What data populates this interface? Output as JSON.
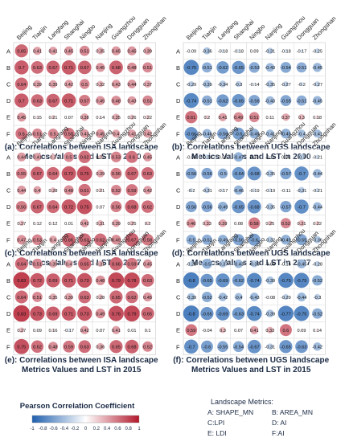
{
  "column_labels": [
    "Beijing",
    "Tianjin",
    "Langfang",
    "Shanghai",
    "Ningbo",
    "Nanjing",
    "Guangzhou",
    "Dongguan",
    "Zhongshan"
  ],
  "row_labels": [
    "A",
    "B",
    "C",
    "D",
    "E",
    "F"
  ],
  "colorbar": {
    "title": "Pearson Correlation Coefficient",
    "ticks": [
      "-1",
      "-0.8",
      "-0.6",
      "-0.4",
      "-0.2",
      "0",
      "0.2",
      "0.4",
      "0.6",
      "0.8",
      "1"
    ],
    "colors": {
      "negative": "#1f5fae",
      "zero": "#ffffff",
      "positive": "#b2182b"
    }
  },
  "landscape_metrics": {
    "title": "Landscape Metrics:",
    "items": [
      "A: SHAPE_MN",
      "B: AREA_MN",
      "C:LPI",
      "D: AI",
      "E: LDI",
      "F:AI"
    ]
  },
  "chart_data": [
    {
      "type": "heatmap",
      "caption_line1": "(a): Correlations between ISA landscape",
      "caption_line2": "Metrics Values and LST in 2000",
      "values": [
        [
          0.65,
          0.41,
          0.41,
          0.45,
          0.51,
          0.35,
          0.45,
          0.45,
          0.39
        ],
        [
          0.7,
          0.63,
          0.67,
          0.71,
          0.67,
          0.45,
          0.68,
          0.48,
          0.51
        ],
        [
          0.64,
          0.39,
          0.39,
          0.42,
          0.5,
          0.32,
          0.43,
          0.44,
          0.37
        ],
        [
          0.7,
          0.63,
          0.67,
          0.71,
          0.57,
          0.45,
          0.48,
          0.43,
          0.51
        ],
        [
          0.45,
          0.15,
          0.21,
          0.07,
          0.38,
          0.14,
          0.35,
          0.26,
          0.22
        ],
        [
          0.6,
          0.51,
          0.5,
          0.58,
          0.43,
          0.45,
          0.4,
          0.41,
          0.42
        ]
      ]
    },
    {
      "type": "heatmap",
      "caption_line1": "(b): Correlations between UGS landscape",
      "caption_line2": "Metrics Values and LST in 2000",
      "values": [
        [
          -0.09,
          -0.36,
          -0.18,
          -0.18,
          0.09,
          -0.31,
          -0.18,
          -0.17,
          -0.25
        ],
        [
          -0.75,
          -0.51,
          -0.62,
          -0.65,
          -0.53,
          -0.43,
          -0.54,
          -0.51,
          -0.45
        ],
        [
          -0.29,
          -0.39,
          -0.34,
          -0.3,
          -0.14,
          -0.35,
          -0.27,
          -0.2,
          -0.27
        ],
        [
          -0.74,
          -0.51,
          -0.62,
          -0.65,
          -0.56,
          -0.43,
          -0.55,
          -0.51,
          -0.45
        ],
        [
          0.61,
          0.2,
          0.41,
          0.49,
          0.51,
          0.11,
          0.37,
          0.3,
          0.18
        ],
        [
          -0.66,
          -0.46,
          -0.56,
          -0.6,
          -0.49,
          -0.41,
          -0.49,
          -0.4,
          -0.41
        ]
      ]
    },
    {
      "type": "heatmap",
      "caption_line1": "(c): Correlations between ISA landscape",
      "caption_line2": "Metrics Values and LST in 2007",
      "values": [
        [
          0.44,
          0.41,
          0.3,
          0.5,
          0.62,
          0.22,
          0.53,
          0.6,
          0.45
        ],
        [
          0.55,
          0.67,
          0.64,
          0.72,
          0.75,
          0.39,
          0.56,
          0.67,
          0.63
        ],
        [
          0.44,
          0.4,
          0.28,
          0.48,
          0.61,
          0.21,
          0.52,
          0.59,
          0.42
        ],
        [
          0.56,
          0.67,
          0.64,
          0.72,
          0.75,
          0.07,
          0.56,
          0.68,
          0.62
        ],
        [
          0.27,
          0.12,
          0.12,
          0.01,
          0.42,
          0.31,
          0.39,
          0.25,
          0.2
        ],
        [
          0.47,
          0.53,
          0.4,
          0.66,
          0.63,
          0.62,
          0.49,
          0.67,
          0.58
        ]
      ]
    },
    {
      "type": "heatmap",
      "caption_line1": "(d): Correlations between UGS landscape",
      "caption_line2": "Metrics Values and LST in 2007",
      "values": [
        [
          -0.06,
          -0.24,
          0.02,
          -0.47,
          0.03,
          -0.11,
          0.06,
          -0.3,
          -0.21
        ],
        [
          -0.56,
          -0.56,
          -0.5,
          -0.64,
          -0.68,
          -0.35,
          -0.57,
          -0.7,
          -0.44
        ],
        [
          -0.2,
          -0.31,
          -0.17,
          -0.46,
          -0.19,
          -0.19,
          -0.11,
          -0.31,
          -0.21
        ],
        [
          -0.56,
          -0.56,
          -0.49,
          -0.65,
          -0.68,
          -0.35,
          -0.57,
          -0.7,
          -0.44
        ],
        [
          0.46,
          0.33,
          0.39,
          0.08,
          0.58,
          0.25,
          0.52,
          0.31,
          0.22
        ],
        [
          -0.5,
          -0.51,
          -0.49,
          -0.56,
          -0.6,
          -0.32,
          -0.49,
          -0.55,
          -0.36
        ]
      ]
    },
    {
      "type": "heatmap",
      "caption_line1": "(e): Correlations between ISA landscape",
      "caption_line2": "Metrics Values and LST in 2015",
      "values": [
        [
          0.64,
          0.51,
          0.39,
          0.4,
          0.65,
          0.31,
          0.66,
          0.59,
          0.45
        ],
        [
          0.83,
          0.72,
          0.69,
          0.71,
          0.73,
          0.48,
          0.79,
          0.78,
          0.63
        ],
        [
          0.64,
          0.51,
          0.35,
          0.39,
          0.63,
          0.28,
          0.65,
          0.62,
          0.45
        ],
        [
          0.83,
          0.73,
          0.69,
          0.71,
          0.73,
          0.49,
          0.76,
          0.79,
          0.65
        ],
        [
          0.27,
          0.09,
          0.16,
          -0.17,
          0.42,
          0.07,
          0.41,
          0.01,
          0.1
        ],
        [
          0.75,
          0.62,
          0.48,
          0.59,
          0.63,
          0.36,
          0.65,
          0.68,
          0.52
        ]
      ]
    },
    {
      "type": "heatmap",
      "caption_line1": "(f): Correlations between UGS landscape",
      "caption_line2": "Metrics Values and LST in 2015",
      "values": [
        [
          -0.28,
          -0.5,
          -0.37,
          -0.43,
          -0.35,
          -0.05,
          -0.16,
          -0.45,
          -0.28
        ],
        [
          -0.8,
          -0.65,
          -0.69,
          -0.62,
          -0.74,
          -0.39,
          -0.75,
          -0.75,
          -0.52
        ],
        [
          -0.39,
          -0.52,
          -0.42,
          -0.4,
          -0.43,
          -0.08,
          -0.29,
          -0.44,
          -0.3
        ],
        [
          -0.8,
          -0.65,
          -0.69,
          -0.63,
          -0.74,
          -0.39,
          -0.77,
          -0.75,
          -0.52
        ],
        [
          0.59,
          -0.04,
          0.3,
          0.07,
          0.41,
          0.33,
          0.6,
          0.09,
          0.14
        ],
        [
          -0.7,
          -0.6,
          -0.55,
          -0.54,
          -0.67,
          -0.31,
          -0.65,
          -0.63,
          -0.42
        ]
      ]
    }
  ]
}
